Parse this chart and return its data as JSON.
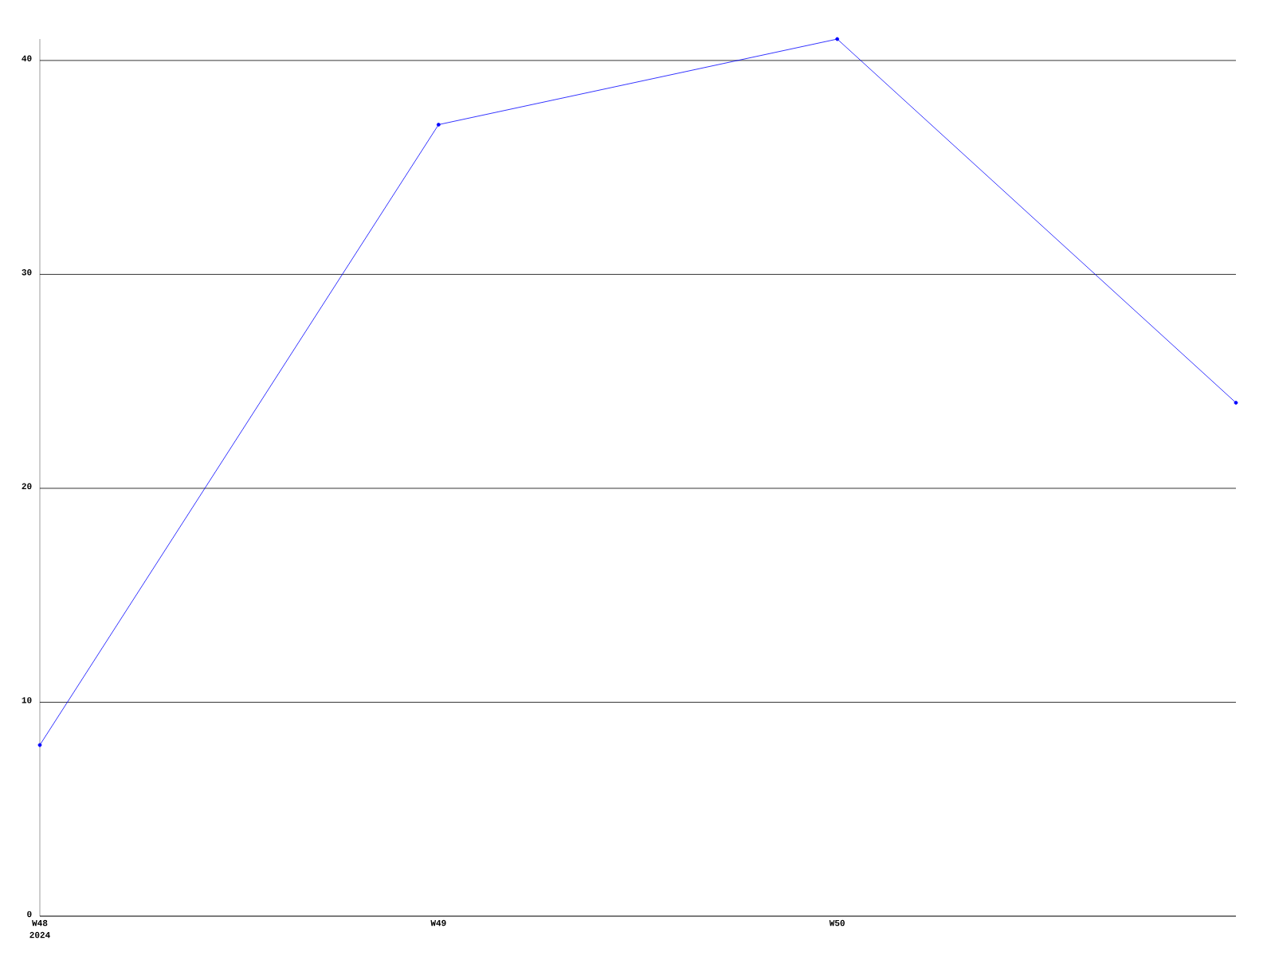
{
  "chart_data": {
    "type": "line",
    "categories": [
      "W48",
      "W49",
      "W50",
      null
    ],
    "series": [
      {
        "color": "#0000ff",
        "values": [
          8,
          37,
          41,
          24
        ]
      }
    ],
    "ylim": [
      0,
      41
    ],
    "yticks": [
      0,
      10,
      20,
      30,
      40
    ],
    "grid": "y",
    "marker": "circle",
    "line_style": "solid",
    "annotations": [
      "2024"
    ]
  }
}
